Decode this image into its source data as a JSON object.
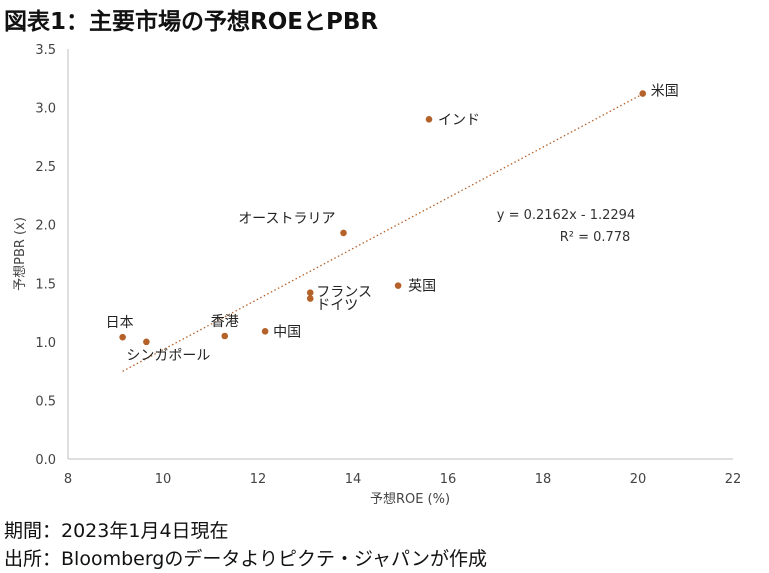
{
  "title": "図表1：主要市場の予想ROEとPBR",
  "footer": {
    "period": "期間：2023年1月4日現在",
    "source": "出所：Bloombergのデータよりピクテ・ジャパンが作成"
  },
  "chart_data": {
    "type": "scatter",
    "xlabel": "予想ROE (%)",
    "ylabel": "予想PBR (x)",
    "xlim": [
      8,
      22
    ],
    "ylim": [
      0,
      3.5
    ],
    "xticks": [
      8,
      10,
      12,
      14,
      16,
      18,
      20,
      22
    ],
    "yticks": [
      0.0,
      0.5,
      1.0,
      1.5,
      2.0,
      2.5,
      3.0,
      3.5
    ],
    "yticklabels": [
      "0.0",
      "0.5",
      "1.0",
      "1.5",
      "2.0",
      "2.5",
      "3.0",
      "3.5"
    ],
    "points": [
      {
        "label": "米国",
        "x": 20.1,
        "y": 3.12
      },
      {
        "label": "インド",
        "x": 15.6,
        "y": 2.9
      },
      {
        "label": "オーストラリア",
        "x": 13.8,
        "y": 1.93
      },
      {
        "label": "英国",
        "x": 14.95,
        "y": 1.48
      },
      {
        "label": "フランス",
        "x": 13.1,
        "y": 1.42
      },
      {
        "label": "ドイツ",
        "x": 13.1,
        "y": 1.37
      },
      {
        "label": "中国",
        "x": 12.15,
        "y": 1.09
      },
      {
        "label": "香港",
        "x": 11.3,
        "y": 1.05
      },
      {
        "label": "日本",
        "x": 9.15,
        "y": 1.04
      },
      {
        "label": "シンガポール",
        "x": 9.65,
        "y": 1.0
      }
    ],
    "trendline": {
      "slope": 0.2162,
      "intercept": -1.2294,
      "x_range": [
        9.15,
        20.1
      ]
    },
    "equation": "y = 0.2162x - 1.2294",
    "r2": "R² = 0.778",
    "colors": {
      "point": "#B4622A",
      "trendline": "#B4622A",
      "axis": "#BFBFBF"
    }
  }
}
